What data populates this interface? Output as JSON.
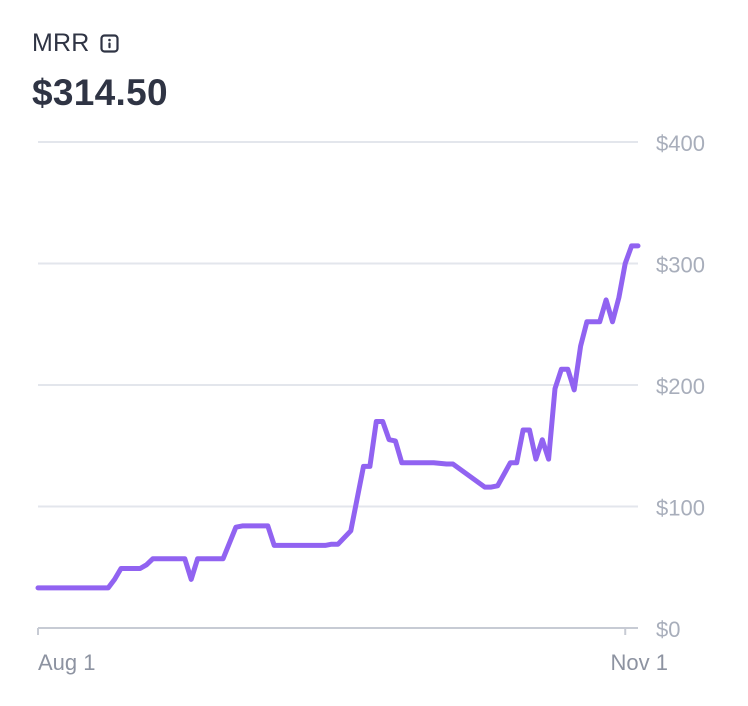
{
  "metric": {
    "title": "MRR",
    "value": "$314.50",
    "info_icon": "info-icon"
  },
  "colors": {
    "line": "#9163f1",
    "grid": "#e3e6ec",
    "axis": "#c7cbd4",
    "tick_label": "#a8aebb",
    "title": "#2f3444"
  },
  "chart_data": {
    "type": "line",
    "title": "MRR",
    "xlabel": "",
    "ylabel": "",
    "ylim": [
      0,
      400
    ],
    "xlim": [
      "2023-08-01",
      "2023-11-03"
    ],
    "yticks": [
      0,
      100,
      200,
      300,
      400
    ],
    "ytick_labels": [
      "$0",
      "$100",
      "$200",
      "$300",
      "$400"
    ],
    "xticks": [
      "2023-08-01",
      "2023-11-01"
    ],
    "xtick_labels": [
      "Aug 1",
      "Nov 1"
    ],
    "grid": true,
    "legend": "none",
    "series": [
      {
        "x": [
          "2023-08-01",
          "2023-08-12",
          "2023-08-13",
          "2023-08-14",
          "2023-08-17",
          "2023-08-18",
          "2023-08-19",
          "2023-08-20",
          "2023-08-24",
          "2023-08-25",
          "2023-08-26",
          "2023-08-27",
          "2023-08-28",
          "2023-08-29",
          "2023-08-30",
          "2023-09-01",
          "2023-09-02",
          "2023-09-03",
          "2023-09-06",
          "2023-09-07",
          "2023-09-08",
          "2023-09-12",
          "2023-09-15",
          "2023-09-16",
          "2023-09-17",
          "2023-09-19",
          "2023-09-21",
          "2023-09-22",
          "2023-09-23",
          "2023-09-24",
          "2023-09-25",
          "2023-09-26",
          "2023-09-27",
          "2023-09-28",
          "2023-10-01",
          "2023-10-02",
          "2023-10-04",
          "2023-10-05",
          "2023-10-10",
          "2023-10-11",
          "2023-10-12",
          "2023-10-14",
          "2023-10-15",
          "2023-10-16",
          "2023-10-17",
          "2023-10-18",
          "2023-10-19",
          "2023-10-20",
          "2023-10-21",
          "2023-10-22",
          "2023-10-23",
          "2023-10-24",
          "2023-10-25",
          "2023-10-26",
          "2023-10-27",
          "2023-10-28",
          "2023-10-29",
          "2023-10-30",
          "2023-10-31",
          "2023-11-01",
          "2023-11-02",
          "2023-11-03"
        ],
        "values": [
          33,
          33,
          40,
          49,
          49,
          52,
          57,
          57,
          57,
          40,
          57,
          57,
          57,
          57,
          57,
          83,
          84,
          84,
          84,
          68,
          68,
          68,
          68,
          69,
          69,
          80,
          133,
          133,
          170,
          170,
          155,
          154,
          136,
          136,
          136,
          136,
          135,
          135,
          116,
          116,
          117,
          136,
          136,
          163,
          163,
          139,
          155,
          139,
          197,
          213,
          213,
          196,
          232,
          252,
          252,
          252,
          270,
          252,
          272,
          300,
          314.5,
          314.5
        ]
      }
    ]
  }
}
